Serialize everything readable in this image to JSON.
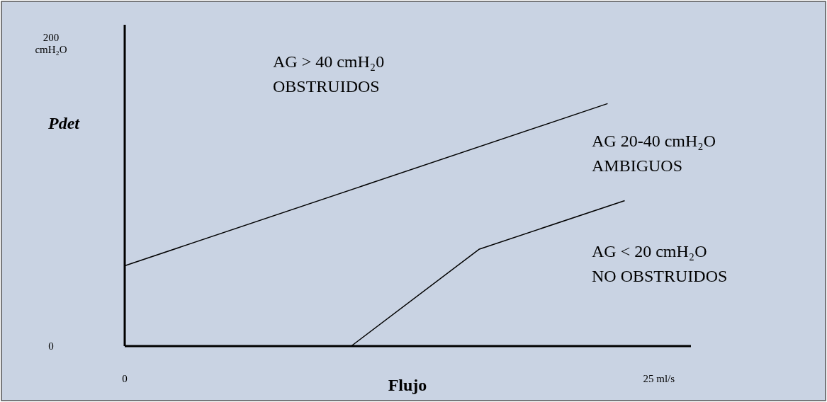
{
  "chart_data": {
    "type": "line",
    "xlabel": "Flujo",
    "ylabel": "Pdet",
    "xlim": [
      0,
      26.5
    ],
    "ylim": [
      0,
      212
    ],
    "xticks": [
      0,
      {
        "value": 25,
        "label": "25 ml/s"
      }
    ],
    "yticks": [
      0,
      {
        "value": 200,
        "label": "200 cmH₂O"
      }
    ],
    "series": [
      {
        "color": "#000000",
        "x": [
          0,
          22.6
        ],
        "values": [
          53,
          160
        ]
      },
      {
        "color": "#000000",
        "x": [
          10.6,
          16.6,
          23.4
        ],
        "values": [
          0,
          64,
          96
        ]
      }
    ],
    "annotations": [
      "AG > 40 cmH₂0",
      "OBSTRUIDOS",
      "AG 20-40 cmH₂O",
      "AMBIGUOS",
      "AG < 20 cmH₂O",
      "NO OBSTRUIDOS"
    ],
    "grid": false,
    "marker": "none",
    "line_style": "solid"
  }
}
